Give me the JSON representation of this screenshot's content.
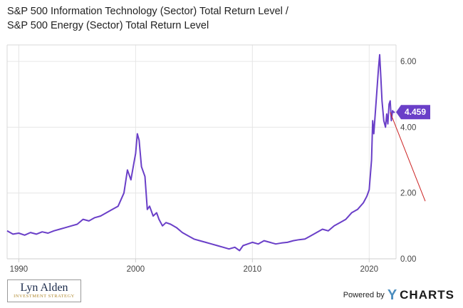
{
  "header": {
    "title": "S&P 500 Information Technology (Sector) Total Return Level / S&P 500 Energy (Sector) Total Return Level"
  },
  "footer": {
    "logo_name": "Lyn Alden",
    "logo_sub": "INVESTMENT STRATEGY",
    "powered_by": "Powered by",
    "brand_y": "Y",
    "brand_word": "CHARTS"
  },
  "colors": {
    "series": "#6a3fc8",
    "badge": "#6a3fc8",
    "trendline": "#cc2222",
    "gridline": "#e6e6e6"
  },
  "chart_data": {
    "type": "line",
    "title": "S&P 500 Information Technology (Sector) Total Return Level / S&P 500 Energy (Sector) Total Return Level",
    "xlabel": "",
    "ylabel": "",
    "xlim": [
      1989.0,
      2022.3
    ],
    "ylim": [
      0,
      6.5
    ],
    "x_ticks": [
      "1990",
      "2000",
      "2010",
      "2020"
    ],
    "x_tick_values": [
      1990,
      2000,
      2010,
      2020
    ],
    "y_ticks": [
      "0.00",
      "2.00",
      "4.00",
      "6.00"
    ],
    "y_tick_values": [
      0,
      2,
      4,
      6
    ],
    "grid": true,
    "last_value_label": "4.459",
    "series": [
      {
        "x": [
          1989.0,
          1989.5,
          1990.0,
          1990.5,
          1991.0,
          1991.5,
          1992.0,
          1992.5,
          1993.0,
          1993.5,
          1994.0,
          1994.5,
          1995.0,
          1995.5,
          1996.0,
          1996.5,
          1997.0,
          1997.5,
          1998.0,
          1998.5,
          1999.0,
          1999.3,
          1999.6,
          1999.9,
          2000.0,
          2000.15,
          2000.3,
          2000.5,
          2000.8,
          2001.0,
          2001.2,
          2001.5,
          2001.8,
          2002.0,
          2002.3,
          2002.6,
          2003.0,
          2003.5,
          2004.0,
          2004.5,
          2005.0,
          2005.5,
          2006.0,
          2006.5,
          2007.0,
          2007.5,
          2008.0,
          2008.5,
          2008.9,
          2009.2,
          2009.6,
          2010.0,
          2010.5,
          2011.0,
          2011.5,
          2012.0,
          2012.5,
          2013.0,
          2013.5,
          2014.0,
          2014.5,
          2015.0,
          2015.5,
          2016.0,
          2016.5,
          2017.0,
          2017.5,
          2018.0,
          2018.5,
          2019.0,
          2019.5,
          2019.8,
          2020.0,
          2020.2,
          2020.3,
          2020.4,
          2020.6,
          2020.8,
          2020.9,
          2021.0,
          2021.1,
          2021.25,
          2021.4,
          2021.5,
          2021.6,
          2021.7,
          2021.8,
          2021.9,
          2022.0,
          2022.1,
          2022.2
        ],
        "values": [
          0.85,
          0.75,
          0.78,
          0.72,
          0.8,
          0.75,
          0.82,
          0.78,
          0.85,
          0.9,
          0.95,
          1.0,
          1.05,
          1.2,
          1.15,
          1.25,
          1.3,
          1.4,
          1.5,
          1.6,
          2.0,
          2.7,
          2.4,
          3.0,
          3.2,
          3.8,
          3.6,
          2.8,
          2.5,
          1.5,
          1.6,
          1.3,
          1.4,
          1.2,
          1.0,
          1.1,
          1.05,
          0.95,
          0.8,
          0.7,
          0.6,
          0.55,
          0.5,
          0.45,
          0.4,
          0.35,
          0.3,
          0.35,
          0.25,
          0.4,
          0.45,
          0.5,
          0.45,
          0.55,
          0.5,
          0.45,
          0.48,
          0.5,
          0.55,
          0.58,
          0.6,
          0.7,
          0.8,
          0.9,
          0.85,
          1.0,
          1.1,
          1.2,
          1.4,
          1.5,
          1.7,
          1.9,
          2.1,
          3.0,
          4.2,
          3.8,
          4.8,
          5.8,
          6.2,
          5.5,
          4.8,
          4.2,
          4.0,
          4.4,
          4.1,
          4.7,
          4.8,
          4.2,
          4.5,
          4.45,
          4.459
        ]
      }
    ],
    "trendline": {
      "x": [
        2021.8,
        2024.8
      ],
      "values": [
        4.45,
        1.75
      ]
    }
  }
}
